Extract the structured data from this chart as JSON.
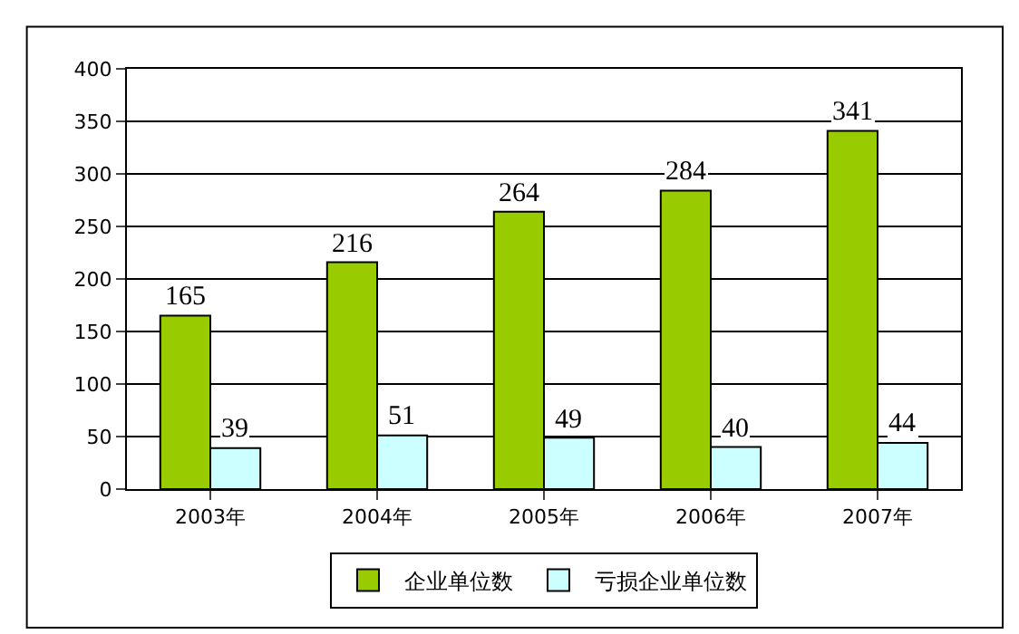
{
  "chart_data": {
    "type": "bar",
    "categories": [
      "2003年",
      "2004年",
      "2005年",
      "2006年",
      "2007年"
    ],
    "series": [
      {
        "name": "企业单位数",
        "color": "#99cc00",
        "values": [
          165,
          216,
          264,
          284,
          341
        ]
      },
      {
        "name": "亏损企业单位数",
        "color": "#ccffff",
        "values": [
          39,
          51,
          49,
          40,
          44
        ]
      }
    ],
    "ylim": [
      0,
      400
    ],
    "yticks": [
      0,
      50,
      100,
      150,
      200,
      250,
      300,
      350,
      400
    ],
    "grid": "y",
    "legend": "bottom",
    "data_labels": true
  }
}
